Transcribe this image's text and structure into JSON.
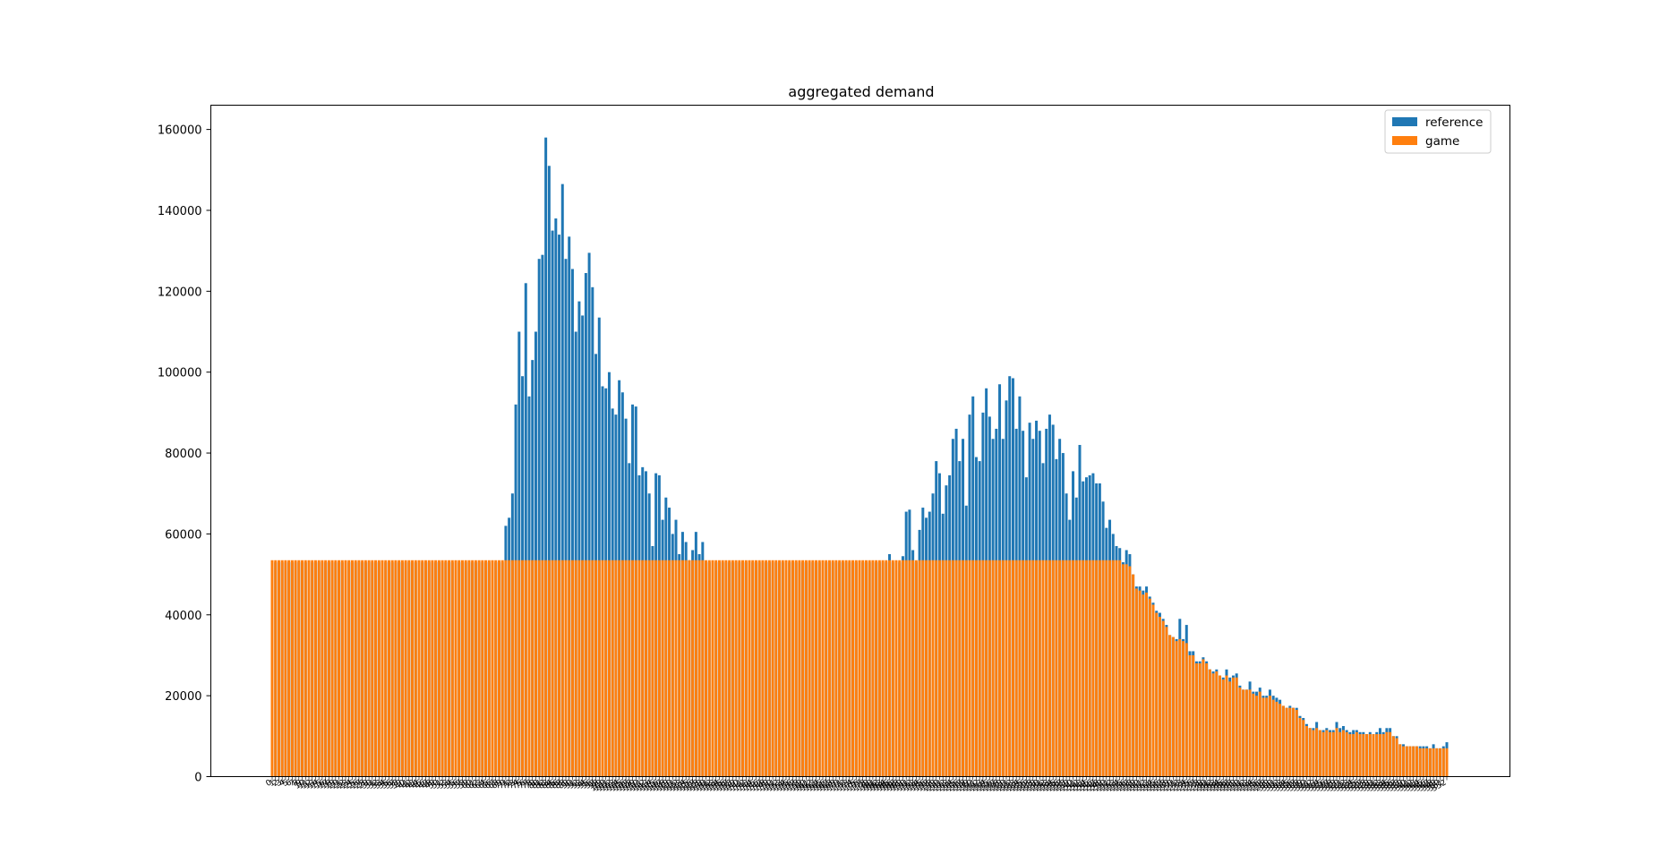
{
  "chart_data": {
    "type": "bar",
    "title": "aggregated demand",
    "xlabel": "",
    "ylabel": "",
    "ylim": [
      0,
      166000
    ],
    "y_ticks": [
      0,
      20000,
      40000,
      60000,
      80000,
      100000,
      120000,
      140000,
      160000
    ],
    "grid": false,
    "legend_position": "top-right",
    "x_tick_labels_rotated": true,
    "x_start_index": 0,
    "series": [
      {
        "name": "reference",
        "color": "#1f77b4",
        "values": [
          53000,
          53000,
          53000,
          53000,
          53000,
          53000,
          53000,
          53000,
          53000,
          53000,
          53000,
          53000,
          53000,
          53000,
          53000,
          53000,
          53000,
          53000,
          53000,
          53000,
          53000,
          53000,
          53000,
          53000,
          53000,
          53000,
          53000,
          53000,
          53000,
          53000,
          53000,
          53000,
          53000,
          53000,
          53000,
          53000,
          53000,
          53000,
          53000,
          53000,
          53000,
          53000,
          53000,
          53000,
          53000,
          53000,
          53000,
          53000,
          53000,
          53000,
          53000,
          53000,
          53000,
          53000,
          53000,
          53000,
          53000,
          53000,
          53000,
          53000,
          53000,
          53000,
          53000,
          53000,
          53000,
          53000,
          53000,
          53000,
          53000,
          53000,
          62000,
          64000,
          70000,
          92000,
          110000,
          99000,
          122000,
          94000,
          103000,
          110000,
          128000,
          129000,
          158000,
          151000,
          135000,
          138000,
          134000,
          146500,
          128000,
          133500,
          125500,
          110000,
          117500,
          114000,
          124500,
          129500,
          121000,
          104500,
          113500,
          96500,
          96000,
          100000,
          91000,
          89500,
          98000,
          95000,
          88500,
          77500,
          92000,
          91500,
          74500,
          76500,
          75500,
          70000,
          57000,
          75000,
          74500,
          63500,
          69000,
          66500,
          60000,
          63500,
          55000,
          60500,
          58000,
          53500,
          56000,
          60500,
          55000,
          58000,
          53000,
          53000,
          53000,
          53000,
          53000,
          53000,
          53000,
          53000,
          53000,
          53000,
          53000,
          53000,
          53000,
          53000,
          53000,
          53000,
          53000,
          53000,
          53000,
          53000,
          53000,
          53000,
          53000,
          53000,
          53000,
          53000,
          53000,
          53000,
          53000,
          53000,
          53000,
          53000,
          53000,
          53000,
          53000,
          53000,
          53000,
          53000,
          53000,
          53000,
          53000,
          53000,
          53000,
          53000,
          53000,
          53000,
          53000,
          53000,
          53000,
          53000,
          53000,
          53000,
          53000,
          53000,
          53000,
          55000,
          53000,
          53000,
          53000,
          54500,
          65500,
          66000,
          56000,
          53000,
          61000,
          66500,
          64000,
          65500,
          70000,
          78000,
          75000,
          65000,
          72000,
          74500,
          83500,
          86000,
          78000,
          83500,
          67000,
          89500,
          94000,
          79000,
          78000,
          90000,
          96000,
          89000,
          83500,
          86000,
          97000,
          83500,
          93000,
          99000,
          98500,
          86000,
          94000,
          85500,
          74000,
          87500,
          83500,
          88000,
          85500,
          77500,
          86000,
          89500,
          87000,
          78500,
          83500,
          80000,
          70000,
          63500,
          75500,
          69000,
          82000,
          73000,
          74000,
          74500,
          75000,
          72500,
          72500,
          68000,
          61500,
          63500,
          60000,
          57000,
          56500,
          53000,
          56000,
          55000,
          50000,
          47000,
          47000,
          46000,
          47000,
          44500,
          43000,
          41000,
          40500,
          39000,
          37500,
          35000,
          34500,
          34000,
          39000,
          34000,
          37500,
          31000,
          31000,
          28500,
          28500,
          29500,
          28500,
          26500,
          26000,
          26500,
          25000,
          24500,
          26500,
          24500,
          25000,
          25500,
          22500,
          21500,
          21500,
          23500,
          21000,
          21000,
          22000,
          20000,
          20000,
          21500,
          20000,
          19500,
          19000,
          17500,
          17000,
          17500,
          17000,
          17000,
          15000,
          14500,
          13000,
          12000,
          12000,
          13500,
          11500,
          11500,
          12000,
          11500,
          11500,
          13500,
          12000,
          12500,
          11500,
          11000,
          11500,
          11500,
          11000,
          11000,
          10500,
          11000,
          10500,
          11000,
          12000,
          11000,
          12000,
          12000,
          10000,
          10000,
          8000,
          8000,
          7500,
          7500,
          7500,
          7500,
          7500,
          7500,
          7500,
          7000,
          8000,
          7000,
          7000,
          7500,
          8500
        ]
      },
      {
        "name": "game",
        "color": "#ff7f0e",
        "values": [
          53500,
          53500,
          53500,
          53500,
          53500,
          53500,
          53500,
          53500,
          53500,
          53500,
          53500,
          53500,
          53500,
          53500,
          53500,
          53500,
          53500,
          53500,
          53500,
          53500,
          53500,
          53500,
          53500,
          53500,
          53500,
          53500,
          53500,
          53500,
          53500,
          53500,
          53500,
          53500,
          53500,
          53500,
          53500,
          53500,
          53500,
          53500,
          53500,
          53500,
          53500,
          53500,
          53500,
          53500,
          53500,
          53500,
          53500,
          53500,
          53500,
          53500,
          53500,
          53500,
          53500,
          53500,
          53500,
          53500,
          53500,
          53500,
          53500,
          53500,
          53500,
          53500,
          53500,
          53500,
          53500,
          53500,
          53500,
          53500,
          53500,
          53500,
          53500,
          53500,
          53500,
          53500,
          53500,
          53500,
          53500,
          53500,
          53500,
          53500,
          53500,
          53500,
          53500,
          53500,
          53500,
          53500,
          53500,
          53500,
          53500,
          53500,
          53500,
          53500,
          53500,
          53500,
          53500,
          53500,
          53500,
          53500,
          53500,
          53500,
          53500,
          53500,
          53500,
          53500,
          53500,
          53500,
          53500,
          53500,
          53500,
          53500,
          53500,
          53500,
          53500,
          53500,
          53500,
          53500,
          53500,
          53500,
          53500,
          53500,
          53500,
          53500,
          53500,
          53500,
          53500,
          53500,
          53500,
          53500,
          53500,
          53500,
          53500,
          53500,
          53500,
          53500,
          53500,
          53500,
          53500,
          53500,
          53500,
          53500,
          53500,
          53500,
          53500,
          53500,
          53500,
          53500,
          53500,
          53500,
          53500,
          53500,
          53500,
          53500,
          53500,
          53500,
          53500,
          53500,
          53500,
          53500,
          53500,
          53500,
          53500,
          53500,
          53500,
          53500,
          53500,
          53500,
          53500,
          53500,
          53500,
          53500,
          53500,
          53500,
          53500,
          53500,
          53500,
          53500,
          53500,
          53500,
          53500,
          53500,
          53500,
          53500,
          53500,
          53500,
          53500,
          53500,
          53500,
          53500,
          53500,
          53500,
          53500,
          53500,
          53500,
          53500,
          53500,
          53500,
          53500,
          53500,
          53500,
          53500,
          53500,
          53500,
          53500,
          53500,
          53500,
          53500,
          53500,
          53500,
          53500,
          53500,
          53500,
          53500,
          53500,
          53500,
          53500,
          53500,
          53500,
          53500,
          53500,
          53500,
          53500,
          53500,
          53500,
          53500,
          53500,
          53500,
          53500,
          53500,
          53500,
          53500,
          53500,
          53500,
          53500,
          53500,
          53500,
          53500,
          53500,
          53500,
          53500,
          53500,
          53500,
          53500,
          53500,
          53500,
          53500,
          53500,
          53500,
          53500,
          53500,
          53500,
          53500,
          53500,
          53500,
          53500,
          53500,
          52500,
          52500,
          52000,
          50000,
          46500,
          46000,
          45000,
          45500,
          44000,
          42500,
          40500,
          39500,
          38500,
          37000,
          35000,
          34500,
          33500,
          34000,
          33500,
          33000,
          30000,
          30000,
          28000,
          28000,
          29000,
          28000,
          26500,
          25500,
          26000,
          25000,
          24000,
          25000,
          23500,
          24500,
          24500,
          22000,
          21500,
          21500,
          21500,
          20500,
          20000,
          21000,
          19500,
          19500,
          20000,
          19000,
          18500,
          18000,
          17500,
          17000,
          17000,
          17000,
          16500,
          14500,
          14000,
          12500,
          12000,
          11500,
          12000,
          11500,
          11000,
          11500,
          11000,
          11000,
          12000,
          11000,
          11500,
          11000,
          10500,
          10500,
          11000,
          10500,
          10500,
          10500,
          10500,
          10500,
          10500,
          10500,
          10500,
          11000,
          11000,
          10000,
          9500,
          8000,
          7500,
          7500,
          7500,
          7500,
          7500,
          7000,
          7000,
          7000,
          7000,
          7000,
          7000,
          7000,
          7000,
          7000
        ]
      }
    ]
  }
}
